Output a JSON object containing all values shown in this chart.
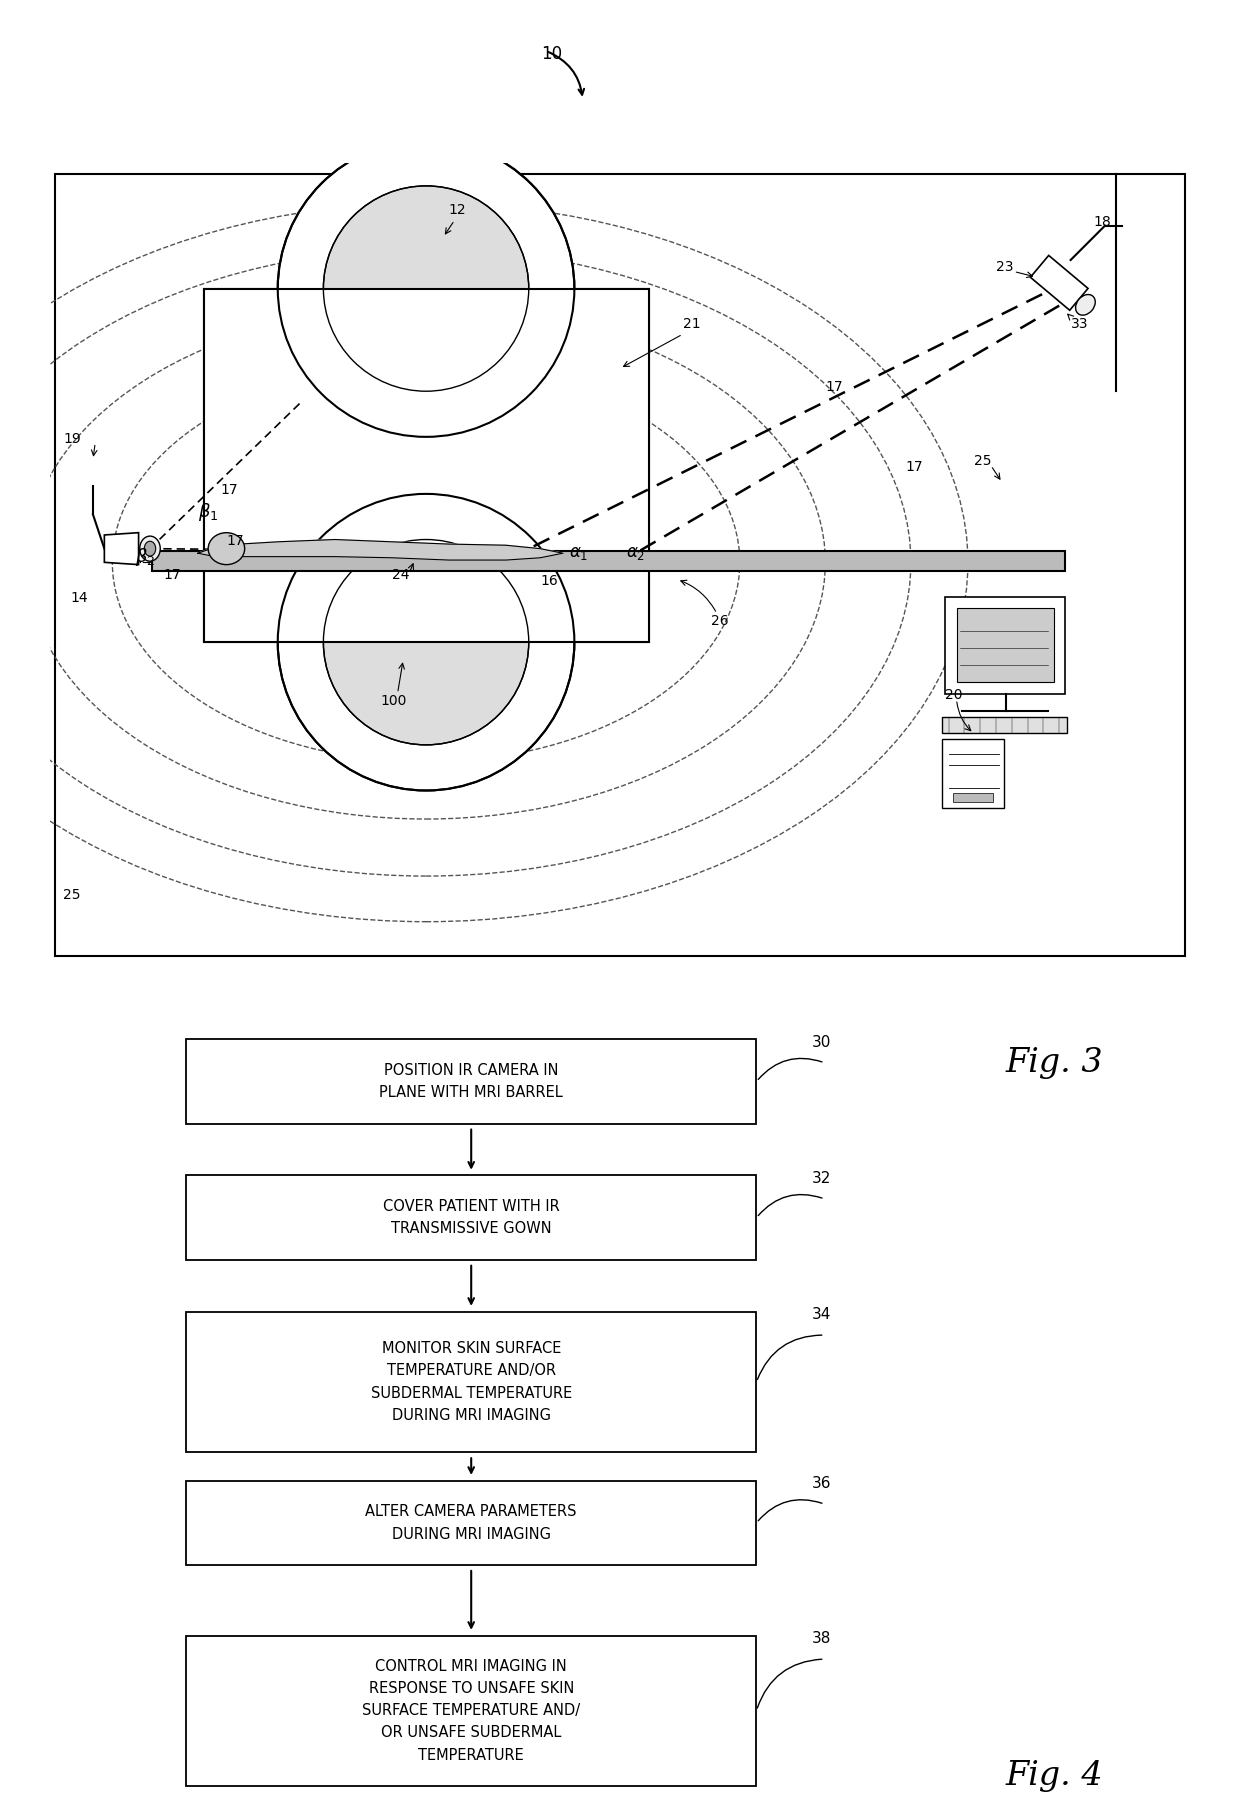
{
  "bg_color": "#ffffff",
  "fig_width": 12.4,
  "fig_height": 18.14,
  "flowchart_boxes": [
    {
      "label": "POSITION IR CAMERA IN\nPLANE WITH MRI BARREL",
      "ref": "30"
    },
    {
      "label": "COVER PATIENT WITH IR\nTRANSMISSIVE GOWN",
      "ref": "32"
    },
    {
      "label": "MONITOR SKIN SURFACE\nTEMPERATURE AND/OR\nSUBDERMAL TEMPERATURE\nDURING MRI IMAGING",
      "ref": "34"
    },
    {
      "label": "ALTER CAMERA PARAMETERS\nDURING MRI IMAGING",
      "ref": "36"
    },
    {
      "label": "CONTROL MRI IMAGING IN\nRESPONSE TO UNSAFE SKIN\nSURFACE TEMPERATURE AND/\nOR UNSAFE SUBDERMAL\nTEMPERATURE",
      "ref": "38"
    }
  ],
  "fig3_label": "Fig. 3",
  "fig4_label": "Fig. 4"
}
